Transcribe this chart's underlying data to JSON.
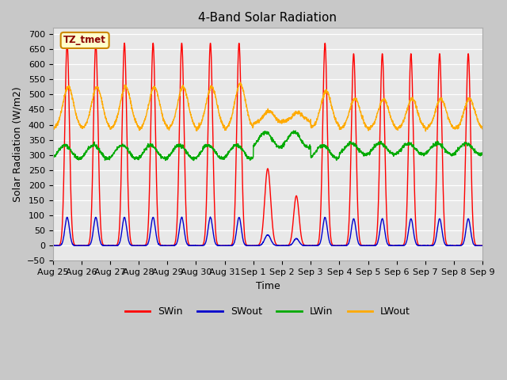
{
  "title": "4-Band Solar Radiation",
  "xlabel": "Time",
  "ylabel": "Solar Radiation (W/m2)",
  "ylim": [
    -50,
    720
  ],
  "yticks": [
    -50,
    0,
    50,
    100,
    150,
    200,
    250,
    300,
    350,
    400,
    450,
    500,
    550,
    600,
    650,
    700
  ],
  "label_annotation": "TZ_tmet",
  "colors": {
    "SWin": "#ff0000",
    "SWout": "#0000cc",
    "LWin": "#00aa00",
    "LWout": "#ffaa00"
  },
  "fig_bg": "#c8c8c8",
  "plot_bg": "#e8e8e8",
  "total_days": 15,
  "linewidth": 1.0
}
